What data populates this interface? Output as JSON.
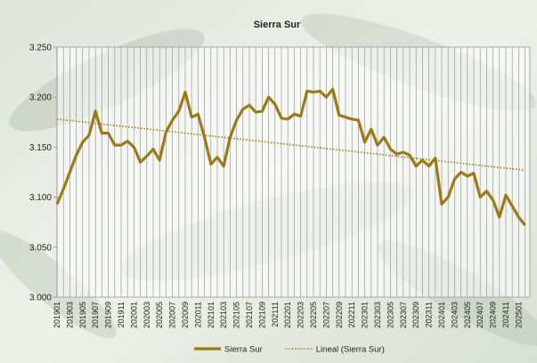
{
  "chart_data": {
    "type": "line",
    "title": "Sierra Sur",
    "categories": [
      "201901",
      null,
      "201903",
      null,
      "201905",
      null,
      "201907",
      null,
      "201909",
      null,
      "201911",
      null,
      "202001",
      null,
      "202003",
      null,
      "202005",
      null,
      "202007",
      null,
      "202009",
      null,
      "202011",
      null,
      "202101",
      null,
      "202103",
      null,
      "202105",
      null,
      "202107",
      null,
      "202109",
      null,
      "202111",
      null,
      "202201",
      null,
      "202203",
      null,
      "202205",
      null,
      "202207",
      null,
      "202209",
      null,
      "202211",
      null,
      "202301",
      null,
      "202303",
      null,
      "202305",
      null,
      "202307",
      null,
      "202309",
      null,
      "202311",
      null,
      "202401",
      null,
      "202403",
      null,
      "202405",
      null,
      "202407",
      null,
      "202409",
      null,
      "202411",
      null,
      "202501",
      null
    ],
    "series": [
      {
        "name": "Sierra Sur",
        "color": "#9c7a17",
        "style": "solid",
        "values": [
          3.093,
          3.108,
          3.125,
          3.142,
          3.155,
          3.162,
          3.186,
          3.164,
          3.164,
          3.152,
          3.152,
          3.156,
          3.15,
          3.135,
          3.141,
          3.148,
          3.137,
          3.165,
          3.177,
          3.186,
          3.205,
          3.18,
          3.183,
          3.16,
          3.133,
          3.14,
          3.131,
          3.16,
          3.177,
          3.188,
          3.192,
          3.185,
          3.186,
          3.2,
          3.193,
          3.179,
          3.178,
          3.183,
          3.181,
          3.206,
          3.205,
          3.206,
          3.2,
          3.208,
          3.182,
          3.18,
          3.178,
          3.177,
          3.155,
          3.168,
          3.152,
          3.16,
          3.148,
          3.143,
          3.145,
          3.142,
          3.131,
          3.137,
          3.131,
          3.139,
          3.093,
          3.1,
          3.118,
          3.125,
          3.121,
          3.124,
          3.1,
          3.106,
          3.097,
          3.08,
          3.102,
          3.091,
          3.08,
          3.072
        ]
      },
      {
        "name": "Lineal (Sierra Sur)",
        "color": "#9c7a17",
        "style": "dotted",
        "values": [
          3.178,
          3.1773,
          3.1766,
          3.1759,
          3.1752,
          3.1745,
          3.1738,
          3.1731,
          3.1724,
          3.1717,
          3.171,
          3.1703,
          3.1696,
          3.1689,
          3.1682,
          3.1675,
          3.1668,
          3.1661,
          3.1654,
          3.1647,
          3.164,
          3.1633,
          3.1626,
          3.1619,
          3.1612,
          3.1605,
          3.1598,
          3.1591,
          3.1584,
          3.1577,
          3.157,
          3.1563,
          3.1556,
          3.1549,
          3.1542,
          3.1535,
          3.1528,
          3.1521,
          3.1514,
          3.1507,
          3.15,
          3.1493,
          3.1486,
          3.1479,
          3.1472,
          3.1465,
          3.1458,
          3.1451,
          3.1444,
          3.1437,
          3.143,
          3.1423,
          3.1416,
          3.1409,
          3.1402,
          3.1395,
          3.1388,
          3.1381,
          3.1374,
          3.1367,
          3.136,
          3.1353,
          3.1346,
          3.1339,
          3.1332,
          3.1325,
          3.1318,
          3.1311,
          3.1304,
          3.1297,
          3.129,
          3.1283,
          3.1276,
          3.1269
        ]
      }
    ],
    "ylim": [
      3.0,
      3.25
    ],
    "yticks": [
      {
        "value": 3.0,
        "label": "3.000"
      },
      {
        "value": 3.05,
        "label": "3.050"
      },
      {
        "value": 3.1,
        "label": "3.100"
      },
      {
        "value": 3.15,
        "label": "3.150"
      },
      {
        "value": 3.2,
        "label": "3.200"
      },
      {
        "value": 3.25,
        "label": "3.250"
      }
    ],
    "grid": "x",
    "legend": "bottom"
  }
}
